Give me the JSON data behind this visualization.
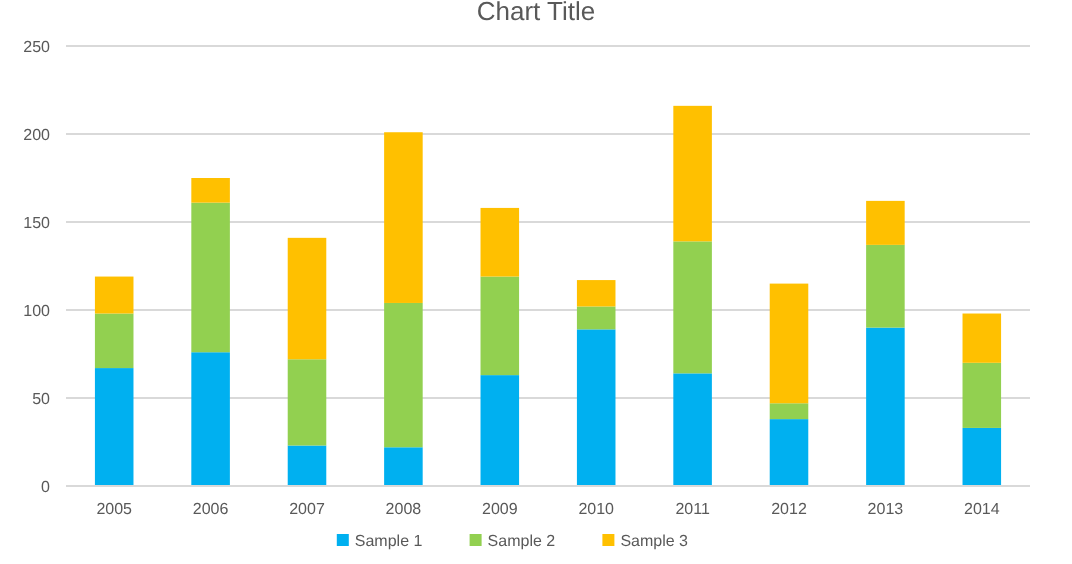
{
  "chart_data": {
    "type": "bar",
    "title": "Chart Title",
    "stacked": true,
    "categories": [
      "2005",
      "2006",
      "2007",
      "2008",
      "2009",
      "2010",
      "2011",
      "2012",
      "2013",
      "2014"
    ],
    "series": [
      {
        "name": "Sample 1",
        "color": "#00b0f0",
        "values": [
          67,
          76,
          23,
          22,
          63,
          89,
          64,
          38,
          90,
          33
        ]
      },
      {
        "name": "Sample 2",
        "color": "#92d050",
        "values": [
          31,
          85,
          49,
          82,
          56,
          13,
          75,
          9,
          47,
          37
        ]
      },
      {
        "name": "Sample 3",
        "color": "#ffc000",
        "values": [
          21,
          14,
          69,
          97,
          39,
          15,
          77,
          68,
          25,
          28
        ]
      }
    ],
    "ylim": [
      0,
      250
    ],
    "yticks": [
      0,
      50,
      100,
      150,
      200,
      250
    ],
    "grid": "y",
    "legend": "bottom"
  }
}
